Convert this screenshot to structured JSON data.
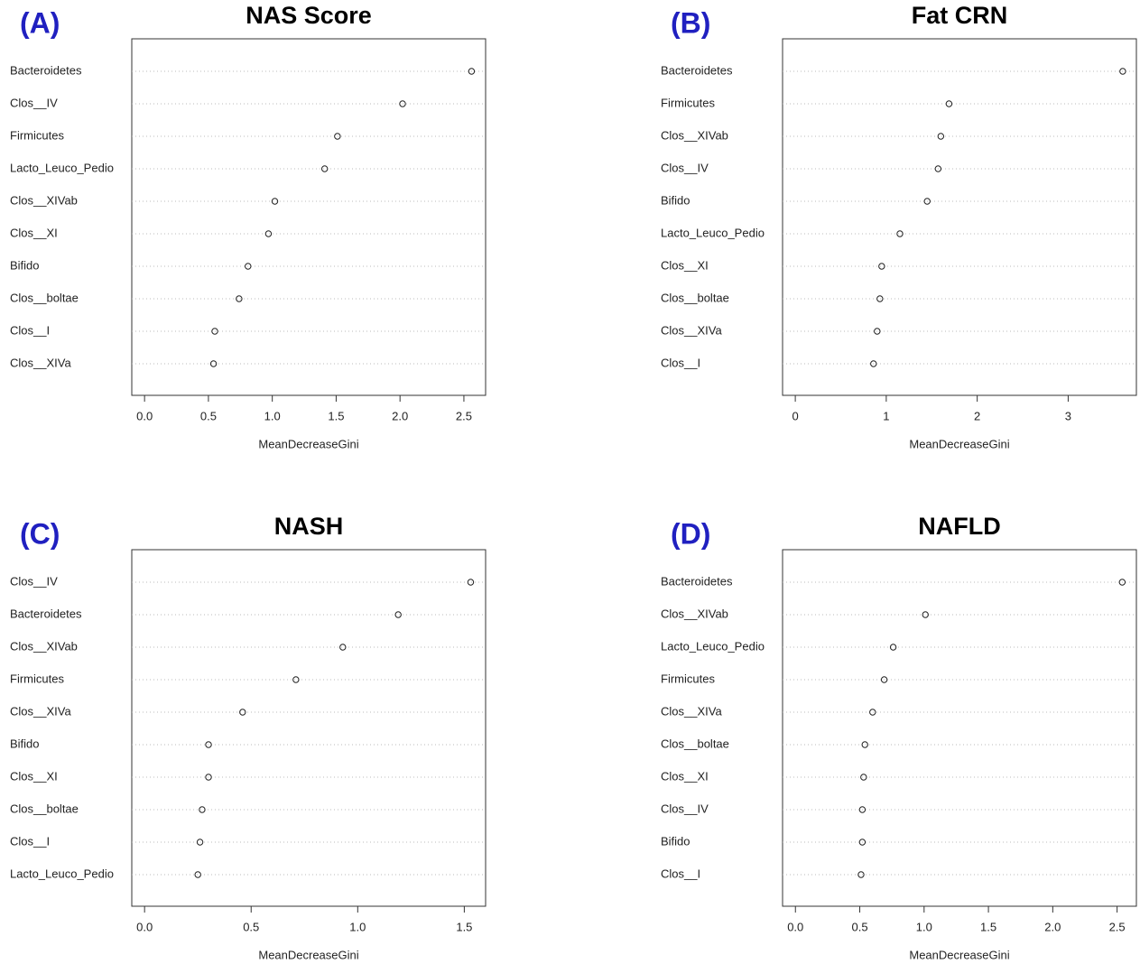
{
  "chart_data": [
    {
      "type": "dot",
      "panel": "(A)",
      "title": "NAS Score",
      "xlabel": "MeanDecreaseGini",
      "categories": [
        "Bacteroidetes",
        "Clos__IV",
        "Firmicutes",
        "Lacto_Leuco_Pedio",
        "Clos__XIVab",
        "Clos__XI",
        "Bifido",
        "Clos__boltae",
        "Clos__I",
        "Clos__XIVa"
      ],
      "values": [
        2.56,
        2.02,
        1.51,
        1.41,
        1.02,
        0.97,
        0.81,
        0.74,
        0.55,
        0.54
      ],
      "xlim": [
        -0.1,
        2.67
      ],
      "xticks": [
        {
          "value": 0,
          "label": "0.0"
        },
        0.5,
        {
          "value": 1,
          "label": "1.0"
        },
        1.5,
        {
          "value": 2,
          "label": "2.0"
        },
        2.5
      ]
    },
    {
      "type": "dot",
      "panel": "(B)",
      "title": "Fat CRN",
      "xlabel": "MeanDecreaseGini",
      "categories": [
        "Bacteroidetes",
        "Firmicutes",
        "Clos__XIVab",
        "Clos__IV",
        "Bifido",
        "Lacto_Leuco_Pedio",
        "Clos__XI",
        "Clos__boltae",
        "Clos__XIVa",
        "Clos__I"
      ],
      "values": [
        3.6,
        1.69,
        1.6,
        1.57,
        1.45,
        1.15,
        0.95,
        0.93,
        0.9,
        0.86
      ],
      "xlim": [
        -0.14,
        3.75
      ],
      "xticks": [
        0,
        1,
        2,
        3
      ]
    },
    {
      "type": "dot",
      "panel": "(C)",
      "title": "NASH",
      "xlabel": "MeanDecreaseGini",
      "categories": [
        "Clos__IV",
        "Bacteroidetes",
        "Clos__XIVab",
        "Firmicutes",
        "Clos__XIVa",
        "Bifido",
        "Clos__XI",
        "Clos__boltae",
        "Clos__I",
        "Lacto_Leuco_Pedio"
      ],
      "values": [
        1.53,
        1.19,
        0.93,
        0.71,
        0.46,
        0.3,
        0.3,
        0.27,
        0.26,
        0.25
      ],
      "xlim": [
        -0.06,
        1.6
      ],
      "xticks": [
        {
          "value": 0,
          "label": "0.0"
        },
        0.5,
        {
          "value": 1,
          "label": "1.0"
        },
        1.5
      ]
    },
    {
      "type": "dot",
      "panel": "(D)",
      "title": "NAFLD",
      "xlabel": "MeanDecreaseGini",
      "categories": [
        "Bacteroidetes",
        "Clos__XIVab",
        "Lacto_Leuco_Pedio",
        "Firmicutes",
        "Clos__XIVa",
        "Clos__boltae",
        "Clos__XI",
        "Clos__IV",
        "Bifido",
        "Clos__I"
      ],
      "values": [
        2.54,
        1.01,
        0.76,
        0.69,
        0.6,
        0.54,
        0.53,
        0.52,
        0.52,
        0.51
      ],
      "xlim": [
        -0.1,
        2.65
      ],
      "xticks": [
        {
          "value": 0,
          "label": "0.0"
        },
        0.5,
        {
          "value": 1,
          "label": "1.0"
        },
        1.5,
        {
          "value": 2,
          "label": "2.0"
        },
        2.5
      ]
    }
  ]
}
